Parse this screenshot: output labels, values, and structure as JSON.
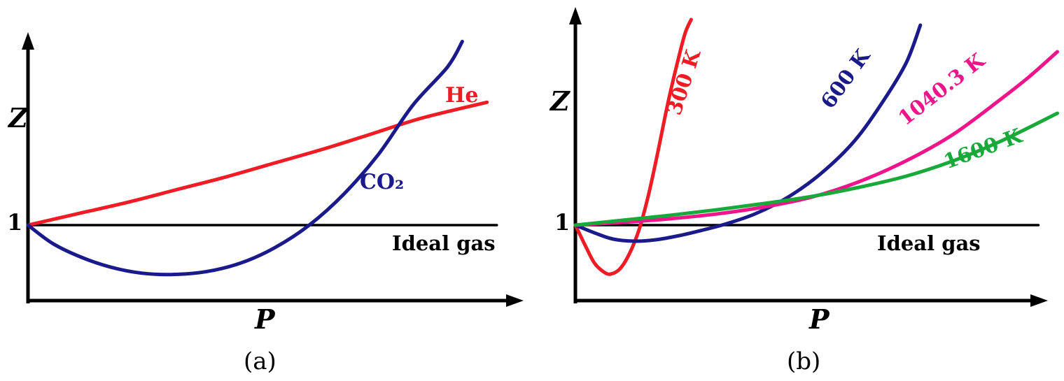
{
  "figure": {
    "captions": {
      "a": "(a)",
      "b": "(b)"
    }
  },
  "chart_data": [
    {
      "id": "a",
      "type": "line",
      "title": "Compressibility factor Z versus pressure P for He and CO2 (schematic)",
      "xlabel": "P",
      "ylabel": "Z",
      "y_unity_tick": "1",
      "xlim": [
        0,
        1
      ],
      "ylim": [
        0.55,
        2.4
      ],
      "grid": false,
      "legend_position": "inline-curve-labels",
      "series": [
        {
          "name": "Ideal gas",
          "color": "#000000",
          "width": 3.5,
          "points": [
            [
              0,
              1
            ],
            [
              0.95,
              1
            ]
          ]
        },
        {
          "name": "He",
          "color": "#ee1c25",
          "width": 5,
          "points": [
            [
              0,
              1.0
            ],
            [
              0.1,
              1.08
            ],
            [
              0.2,
              1.16
            ],
            [
              0.3,
              1.25
            ],
            [
              0.4,
              1.34
            ],
            [
              0.5,
              1.44
            ],
            [
              0.6,
              1.54
            ],
            [
              0.7,
              1.65
            ],
            [
              0.8,
              1.76
            ],
            [
              0.93,
              1.87
            ]
          ]
        },
        {
          "name": "CO₂",
          "color": "#1b1a8b",
          "width": 5,
          "points": [
            [
              0,
              1.0
            ],
            [
              0.05,
              0.87
            ],
            [
              0.11,
              0.77
            ],
            [
              0.17,
              0.7
            ],
            [
              0.23,
              0.66
            ],
            [
              0.29,
              0.65
            ],
            [
              0.36,
              0.67
            ],
            [
              0.43,
              0.73
            ],
            [
              0.5,
              0.84
            ],
            [
              0.57,
              1.0
            ],
            [
              0.64,
              1.22
            ],
            [
              0.71,
              1.5
            ],
            [
              0.78,
              1.85
            ],
            [
              0.85,
              2.12
            ],
            [
              0.88,
              2.3
            ]
          ]
        }
      ]
    },
    {
      "id": "b",
      "type": "line",
      "title": "Compressibility factor Z versus pressure P at several temperatures (schematic)",
      "xlabel": "P",
      "ylabel": "Z",
      "y_unity_tick": "1",
      "xlim": [
        0,
        1.05
      ],
      "ylim": [
        0.6,
        2.6
      ],
      "grid": false,
      "legend_position": "inline-curve-labels",
      "series": [
        {
          "name": "Ideal gas",
          "color": "#000000",
          "width": 3.5,
          "points": [
            [
              0,
              1
            ],
            [
              0.98,
              1
            ]
          ]
        },
        {
          "name": "300 K",
          "color": "#ee1c25",
          "width": 5,
          "points": [
            [
              0,
              1.0
            ],
            [
              0.02,
              0.86
            ],
            [
              0.04,
              0.73
            ],
            [
              0.06,
              0.665
            ],
            [
              0.075,
              0.65
            ],
            [
              0.095,
              0.69
            ],
            [
              0.115,
              0.8
            ],
            [
              0.135,
              0.97
            ],
            [
              0.155,
              1.22
            ],
            [
              0.175,
              1.53
            ],
            [
              0.195,
              1.86
            ],
            [
              0.215,
              2.15
            ],
            [
              0.232,
              2.37
            ],
            [
              0.245,
              2.47
            ]
          ]
        },
        {
          "name": "600 K",
          "color": "#1b1a8b",
          "width": 5,
          "points": [
            [
              0,
              1.0
            ],
            [
              0.04,
              0.945
            ],
            [
              0.08,
              0.9
            ],
            [
              0.125,
              0.885
            ],
            [
              0.17,
              0.895
            ],
            [
              0.22,
              0.925
            ],
            [
              0.27,
              0.965
            ],
            [
              0.315,
              1.005
            ],
            [
              0.38,
              1.08
            ],
            [
              0.45,
              1.2
            ],
            [
              0.52,
              1.37
            ],
            [
              0.59,
              1.6
            ],
            [
              0.65,
              1.88
            ],
            [
              0.7,
              2.16
            ],
            [
              0.73,
              2.43
            ]
          ]
        },
        {
          "name": "1040.3 K",
          "color": "#f0148b",
          "width": 5,
          "points": [
            [
              0,
              1.0
            ],
            [
              0.1,
              1.02
            ],
            [
              0.2,
              1.045
            ],
            [
              0.3,
              1.08
            ],
            [
              0.4,
              1.13
            ],
            [
              0.5,
              1.2
            ],
            [
              0.6,
              1.31
            ],
            [
              0.7,
              1.46
            ],
            [
              0.8,
              1.65
            ],
            [
              0.9,
              1.9
            ],
            [
              0.96,
              2.06
            ],
            [
              1.02,
              2.24
            ]
          ]
        },
        {
          "name": "1600 K",
          "color": "#19a93a",
          "width": 5,
          "points": [
            [
              0,
              1.0
            ],
            [
              0.1,
              1.035
            ],
            [
              0.2,
              1.07
            ],
            [
              0.3,
              1.11
            ],
            [
              0.4,
              1.155
            ],
            [
              0.5,
              1.205
            ],
            [
              0.6,
              1.27
            ],
            [
              0.7,
              1.35
            ],
            [
              0.8,
              1.46
            ],
            [
              0.9,
              1.6
            ],
            [
              1.02,
              1.8
            ]
          ]
        }
      ]
    }
  ]
}
